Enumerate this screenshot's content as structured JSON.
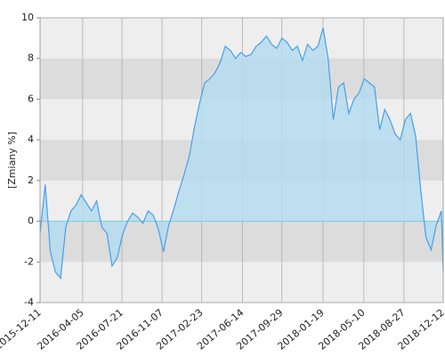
{
  "chart_data": {
    "type": "area",
    "y_label": "[Zmiany %]",
    "x": [
      "2015-12-11",
      "2015-12-25",
      "2016-01-08",
      "2016-01-22",
      "2016-02-05",
      "2016-02-19",
      "2016-03-04",
      "2016-03-18",
      "2016-04-01",
      "2016-04-15",
      "2016-04-29",
      "2016-05-13",
      "2016-05-27",
      "2016-06-10",
      "2016-06-24",
      "2016-07-08",
      "2016-07-22",
      "2016-08-05",
      "2016-08-19",
      "2016-09-02",
      "2016-09-16",
      "2016-09-30",
      "2016-10-14",
      "2016-10-28",
      "2016-11-11",
      "2016-11-25",
      "2016-12-09",
      "2016-12-23",
      "2017-01-06",
      "2017-01-20",
      "2017-02-03",
      "2017-02-17",
      "2017-03-03",
      "2017-03-17",
      "2017-03-31",
      "2017-04-14",
      "2017-04-28",
      "2017-05-12",
      "2017-05-26",
      "2017-06-09",
      "2017-06-23",
      "2017-07-07",
      "2017-07-21",
      "2017-08-04",
      "2017-08-18",
      "2017-09-01",
      "2017-09-15",
      "2017-09-29",
      "2017-10-13",
      "2017-10-27",
      "2017-11-10",
      "2017-11-24",
      "2017-12-08",
      "2017-12-22",
      "2018-01-05",
      "2018-01-19",
      "2018-02-02",
      "2018-02-16",
      "2018-03-02",
      "2018-03-16",
      "2018-03-30",
      "2018-04-13",
      "2018-04-27",
      "2018-05-11",
      "2018-05-25",
      "2018-06-08",
      "2018-06-22",
      "2018-07-06",
      "2018-07-20",
      "2018-08-03",
      "2018-08-17",
      "2018-08-31",
      "2018-09-14",
      "2018-09-28",
      "2018-10-12",
      "2018-10-26",
      "2018-11-09",
      "2018-11-23",
      "2018-12-07",
      "2018-12-12"
    ],
    "values": [
      -0.6,
      1.8,
      -1.5,
      -2.5,
      -2.8,
      -0.3,
      0.5,
      0.8,
      1.3,
      0.9,
      0.5,
      1.0,
      -0.3,
      -0.6,
      -2.2,
      -1.8,
      -0.7,
      0,
      0.4,
      0.2,
      -0.1,
      0.5,
      0.3,
      -0.4,
      -1.5,
      -0.2,
      0.6,
      1.5,
      2.3,
      3.2,
      4.6,
      5.8,
      6.8,
      7.0,
      7.3,
      7.8,
      8.6,
      8.4,
      8.0,
      8.3,
      8.1,
      8.2,
      8.6,
      8.8,
      9.1,
      8.7,
      8.5,
      9.0,
      8.8,
      8.4,
      8.6,
      7.9,
      8.7,
      8.4,
      8.6,
      9.5,
      8.0,
      5.0,
      6.6,
      6.8,
      5.3,
      6.0,
      6.3,
      7.0,
      6.8,
      6.6,
      4.5,
      5.5,
      5.0,
      4.3,
      4.0,
      5.0,
      5.3,
      4.2,
      1.5,
      -0.8,
      -1.4,
      -0.2,
      0.5,
      -2.5
    ],
    "color": "#4a9ee8",
    "fill_color": "#b4dcef",
    "xlim": [
      "2015-12-11",
      "2018-12-12"
    ],
    "xticks": [
      "2015-12-11",
      "2016-04-05",
      "2016-07-21",
      "2016-11-07",
      "2017-02-23",
      "2017-06-14",
      "2017-09-29",
      "2018-01-19",
      "2018-05-10",
      "2018-08-27",
      "2018-12-12"
    ],
    "ylim": [
      -4,
      10
    ],
    "yticks": [
      -4,
      -2,
      0,
      2,
      4,
      6,
      8,
      10
    ],
    "grid": true
  }
}
